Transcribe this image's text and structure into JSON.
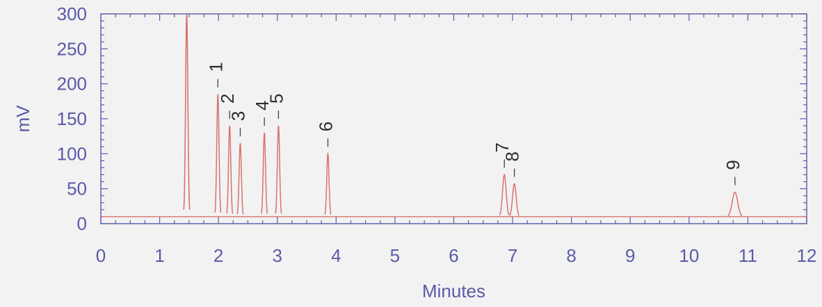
{
  "colors": {
    "background": "#f2f2f2",
    "axis": "#5a5aa8",
    "text": "#5a5aa8",
    "trace": "#d97070",
    "marker": "#404040",
    "label": "#2f2f2f"
  },
  "chart_data": {
    "type": "line",
    "title": "",
    "xlabel": "Minutes",
    "ylabel": "mV",
    "xlim": [
      0,
      12
    ],
    "ylim": [
      0,
      300
    ],
    "x_ticks": [
      "0",
      "1",
      "2",
      "3",
      "4",
      "5",
      "6",
      "7",
      "8",
      "9",
      "10",
      "11",
      "12"
    ],
    "y_ticks": [
      "0",
      "50",
      "100",
      "150",
      "200",
      "250",
      "300"
    ],
    "grid": false,
    "baseline_mV": 10,
    "solvent_peak": {
      "time": 1.46,
      "height": 300,
      "clipped": true
    },
    "peaks": [
      {
        "label": "1",
        "time": 1.99,
        "height": 185
      },
      {
        "label": "2",
        "time": 2.19,
        "height": 140
      },
      {
        "label": "3",
        "time": 2.37,
        "height": 115
      },
      {
        "label": "4",
        "time": 2.78,
        "height": 130
      },
      {
        "label": "5",
        "time": 3.02,
        "height": 140
      },
      {
        "label": "6",
        "time": 3.86,
        "height": 100
      },
      {
        "label": "7",
        "time": 6.86,
        "height": 70
      },
      {
        "label": "8",
        "time": 7.03,
        "height": 57
      },
      {
        "label": "9",
        "time": 10.78,
        "height": 45
      }
    ]
  }
}
